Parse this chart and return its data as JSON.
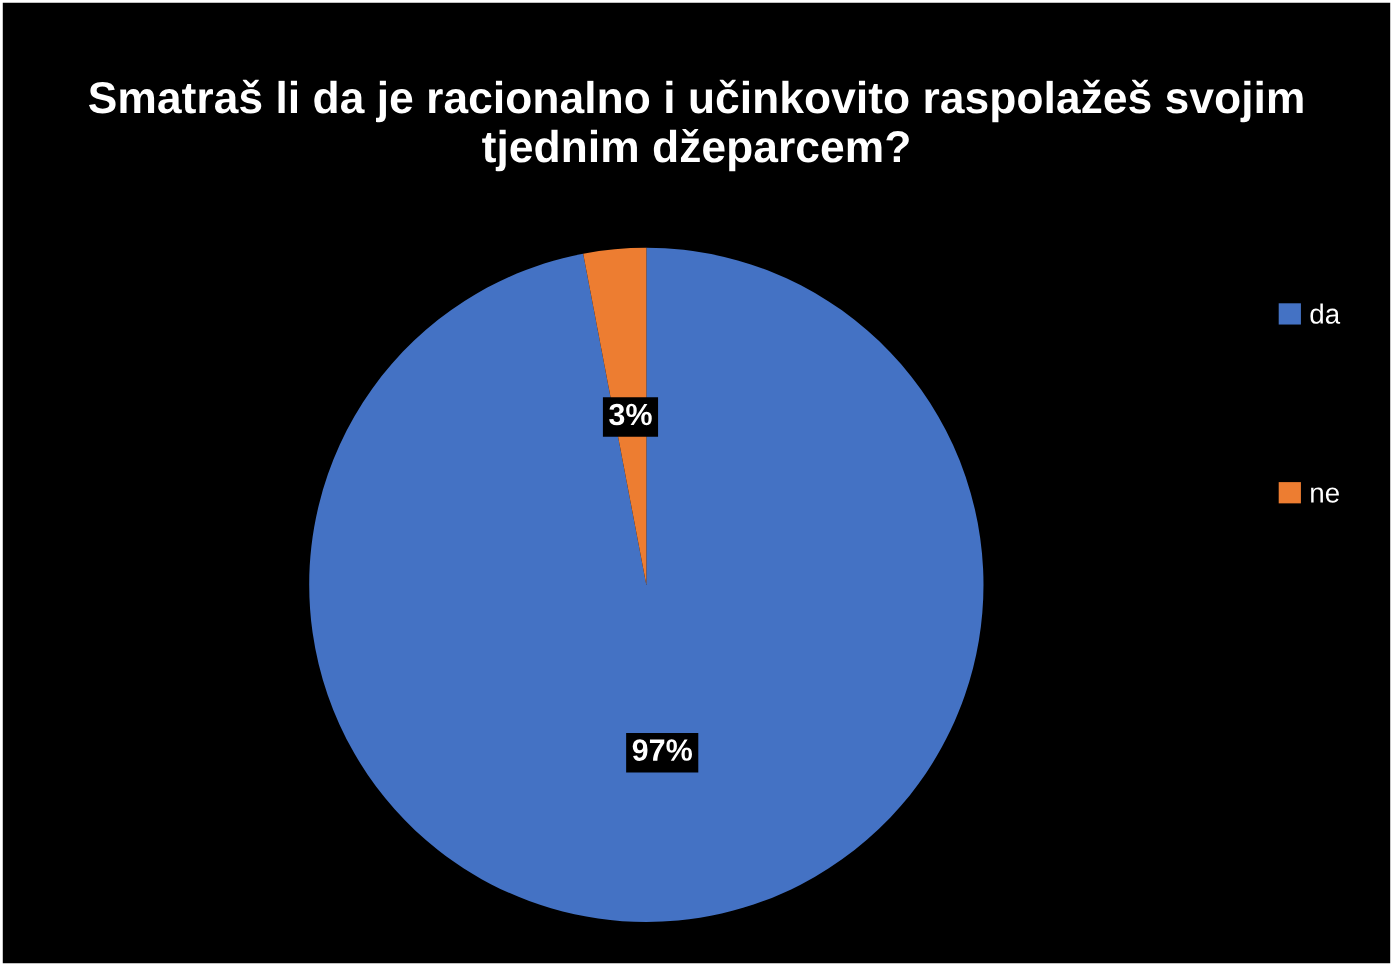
{
  "chart_data": {
    "type": "pie",
    "title": "Smatraš li da je racionalno i učinkovito raspolažeš svojim tjednim džeparcem?",
    "categories": [
      "da",
      "ne"
    ],
    "values": [
      97,
      3
    ],
    "colors": [
      "#4472c4",
      "#ed7d31"
    ],
    "value_labels": [
      "97%",
      "3%"
    ],
    "legend": "right"
  }
}
